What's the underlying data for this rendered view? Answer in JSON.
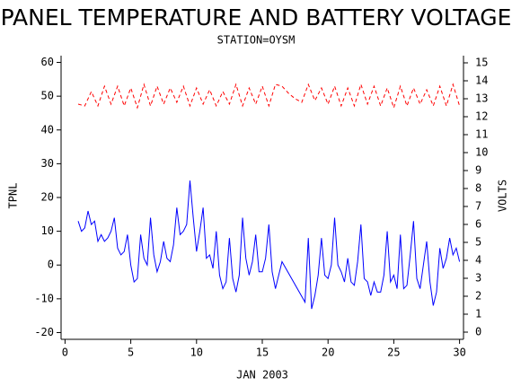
{
  "chart_data": {
    "type": "line",
    "title": "PANEL TEMPERATURE AND BATTERY VOLTAGE",
    "subtitle": "STATION=OYSM",
    "x_label": "JAN 2003",
    "y_label": "TPNL",
    "y2_label": "VOLTS",
    "xlim": [
      -0.3,
      30.3
    ],
    "xticks": [
      0,
      5,
      10,
      15,
      20,
      25,
      30
    ],
    "ylim": [
      -22,
      62
    ],
    "yticks": [
      -20,
      -10,
      0,
      10,
      20,
      30,
      40,
      50,
      60
    ],
    "y2lim": [
      -0.4,
      15.4
    ],
    "y2ticks": [
      0,
      1,
      2,
      3,
      4,
      5,
      6,
      7,
      8,
      9,
      10,
      11,
      12,
      13,
      14,
      15
    ],
    "series": [
      {
        "name": "TPNL",
        "color": "#0000ff",
        "axis": "y",
        "x": [
          1,
          1.25,
          1.5,
          1.75,
          2,
          2.25,
          2.5,
          2.75,
          3,
          3.25,
          3.5,
          3.75,
          4,
          4.25,
          4.5,
          4.75,
          5,
          5.25,
          5.5,
          5.75,
          6,
          6.25,
          6.5,
          6.75,
          7,
          7.25,
          7.5,
          7.75,
          8,
          8.25,
          8.5,
          8.75,
          9,
          9.25,
          9.5,
          9.75,
          10,
          10.25,
          10.5,
          10.75,
          11,
          11.25,
          11.5,
          11.75,
          12,
          12.25,
          12.5,
          12.75,
          13,
          13.25,
          13.5,
          13.75,
          14,
          14.25,
          14.5,
          14.75,
          15,
          15.25,
          15.5,
          15.75,
          16,
          16.25,
          16.5,
          18.25,
          18.5,
          18.75,
          19,
          19.25,
          19.5,
          19.75,
          20,
          20.25,
          20.5,
          20.75,
          21,
          21.25,
          21.5,
          21.75,
          22,
          22.25,
          22.5,
          22.75,
          23,
          23.25,
          23.5,
          23.75,
          24,
          24.25,
          24.5,
          24.75,
          25,
          25.25,
          25.5,
          25.75,
          26,
          26.25,
          26.5,
          26.75,
          27,
          27.25,
          27.5,
          27.75,
          28,
          28.25,
          28.5,
          28.75,
          29,
          29.25,
          29.5,
          29.75,
          30
        ],
        "values": [
          13,
          10,
          11,
          16,
          12,
          13,
          7,
          9,
          7,
          8,
          10,
          14,
          5,
          3,
          4,
          9,
          0,
          -5,
          -4,
          9,
          2,
          0,
          14,
          3,
          -2,
          1,
          7,
          2,
          1,
          6,
          17,
          9,
          10,
          12,
          25,
          14,
          4,
          10,
          17,
          2,
          3,
          -1,
          10,
          -3,
          -7,
          -5,
          8,
          -4,
          -8,
          -3,
          14,
          2,
          -3,
          1,
          9,
          -2,
          -2,
          2,
          12,
          -2,
          -7,
          -3,
          1,
          -11,
          8,
          -13,
          -9,
          -3,
          8,
          -3,
          -4,
          0,
          14,
          0,
          -2,
          -5,
          2,
          -5,
          -6,
          1,
          12,
          -4,
          -5,
          -9,
          -5,
          -8,
          -8,
          -3,
          10,
          -5,
          -3,
          -7,
          9,
          -7,
          -6,
          3,
          13,
          -4,
          -7,
          0,
          7,
          -5,
          -12,
          -8,
          5,
          -1,
          2,
          8,
          3,
          5,
          1
        ]
      },
      {
        "name": "VOLTS",
        "color": "#ff0000",
        "axis": "y2",
        "x": [
          1,
          1.5,
          2,
          2.5,
          3,
          3.5,
          4,
          4.5,
          5,
          5.5,
          6,
          6.5,
          7,
          7.5,
          8,
          8.5,
          9,
          9.5,
          10,
          10.5,
          11,
          11.5,
          12,
          12.5,
          13,
          13.5,
          14,
          14.5,
          15,
          15.5,
          16,
          16.5,
          17,
          17.5,
          18,
          18.5,
          19,
          19.5,
          20,
          20.5,
          21,
          21.5,
          22,
          22.5,
          23,
          23.5,
          24,
          24.5,
          25,
          25.5,
          26,
          26.5,
          27,
          27.5,
          28,
          28.5,
          29,
          29.5,
          30
        ],
        "values": [
          12.7,
          12.6,
          13.4,
          12.6,
          13.7,
          12.7,
          13.7,
          12.6,
          13.6,
          12.5,
          13.8,
          12.6,
          13.7,
          12.7,
          13.6,
          12.8,
          13.7,
          12.6,
          13.6,
          12.7,
          13.5,
          12.6,
          13.4,
          12.7,
          13.8,
          12.6,
          13.6,
          12.7,
          13.7,
          12.6,
          13.8,
          13.7,
          13.3,
          13.0,
          12.8,
          13.8,
          12.9,
          13.6,
          12.7,
          13.7,
          12.6,
          13.6,
          12.6,
          13.8,
          12.7,
          13.7,
          12.6,
          13.6,
          12.5,
          13.7,
          12.6,
          13.6,
          12.7,
          13.5,
          12.6,
          13.7,
          12.6,
          13.8,
          12.6
        ]
      }
    ]
  }
}
